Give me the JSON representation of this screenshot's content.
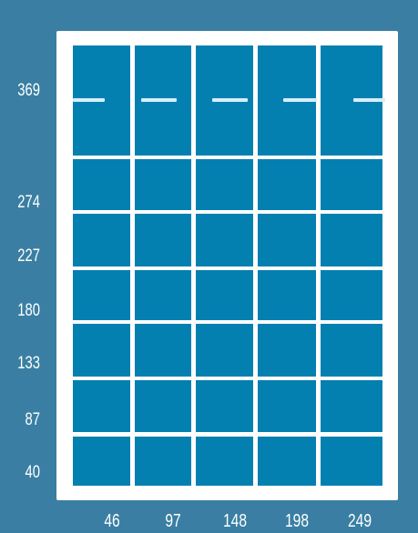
{
  "y_axis": {
    "labels": [
      "369",
      "274",
      "227",
      "180",
      "133",
      "87",
      "40"
    ]
  },
  "x_axis": {
    "labels": [
      "46",
      "97",
      "148",
      "198",
      "249"
    ]
  },
  "grid": {
    "columns": 5,
    "rows": 7,
    "tile_color": "#0480b0",
    "border_color": "#ffffff",
    "background_color": "#3a7fa3",
    "marker": "dash",
    "marker_row": 0
  }
}
